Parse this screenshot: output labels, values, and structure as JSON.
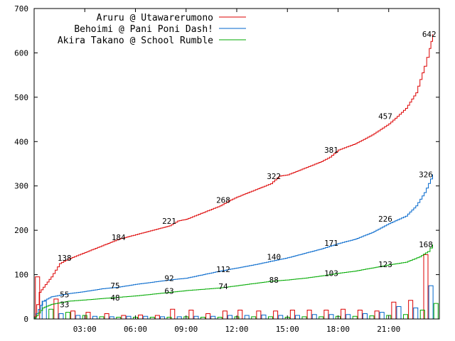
{
  "chart_data": {
    "type": "line",
    "title": "",
    "xlabel": "",
    "ylabel": "",
    "xlim": [
      0,
      24
    ],
    "ylim": [
      0,
      700
    ],
    "y_ticks": [
      0,
      100,
      200,
      300,
      400,
      500,
      600,
      700
    ],
    "x_ticks": [
      {
        "t": 3,
        "label": "03:00"
      },
      {
        "t": 6,
        "label": "06:00"
      },
      {
        "t": 9,
        "label": "09:00"
      },
      {
        "t": 12,
        "label": "12:00"
      },
      {
        "t": 15,
        "label": "15:00"
      },
      {
        "t": 18,
        "label": "18:00"
      },
      {
        "t": 21,
        "label": "21:00"
      }
    ],
    "grid": false,
    "legend_position": "top-right",
    "series": [
      {
        "name": "Aruru @ Utawarerumono",
        "color": "#dd0000",
        "values": [
          [
            0,
            5
          ],
          [
            0.3,
            60
          ],
          [
            1,
            95
          ],
          [
            1.5,
            125
          ],
          [
            2,
            135
          ],
          [
            3,
            150
          ],
          [
            4,
            165
          ],
          [
            5,
            180
          ],
          [
            6,
            190
          ],
          [
            7,
            200
          ],
          [
            8,
            210
          ],
          [
            8.5,
            221
          ],
          [
            9,
            225
          ],
          [
            10,
            240
          ],
          [
            11,
            255
          ],
          [
            11.5,
            266
          ],
          [
            12,
            275
          ],
          [
            13,
            290
          ],
          [
            14,
            305
          ],
          [
            14.5,
            322
          ],
          [
            15,
            325
          ],
          [
            16,
            340
          ],
          [
            17,
            355
          ],
          [
            17.5,
            365
          ],
          [
            18,
            381
          ],
          [
            19,
            395
          ],
          [
            20,
            415
          ],
          [
            21,
            440
          ],
          [
            21.5,
            457
          ],
          [
            22,
            475
          ],
          [
            22.6,
            510
          ],
          [
            23.1,
            570
          ],
          [
            23.4,
            610
          ],
          [
            23.6,
            642
          ]
        ],
        "annotations": [
          {
            "t": 1.8,
            "v": 138,
            "label": "138"
          },
          {
            "t": 5,
            "v": 184,
            "label": "184"
          },
          {
            "t": 8,
            "v": 221,
            "label": "221"
          },
          {
            "t": 11.2,
            "v": 268,
            "label": "268"
          },
          {
            "t": 14.2,
            "v": 322,
            "label": "322"
          },
          {
            "t": 17.6,
            "v": 381,
            "label": "381"
          },
          {
            "t": 20.8,
            "v": 457,
            "label": "457"
          },
          {
            "t": 23.4,
            "v": 642,
            "label": "642"
          }
        ],
        "bars": [
          [
            0.2,
            95
          ],
          [
            1.3,
            45
          ],
          [
            2.3,
            18
          ],
          [
            3.2,
            15
          ],
          [
            4.3,
            12
          ],
          [
            5.3,
            8
          ],
          [
            6.3,
            9
          ],
          [
            7.3,
            8
          ],
          [
            8.2,
            22
          ],
          [
            9.3,
            20
          ],
          [
            10.3,
            12
          ],
          [
            11.3,
            18
          ],
          [
            12.2,
            20
          ],
          [
            13.3,
            18
          ],
          [
            14.3,
            18
          ],
          [
            15.3,
            20
          ],
          [
            16.3,
            20
          ],
          [
            17.3,
            20
          ],
          [
            18.3,
            22
          ],
          [
            19.3,
            20
          ],
          [
            20.3,
            18
          ],
          [
            21.3,
            38
          ],
          [
            22.3,
            42
          ],
          [
            23.2,
            145
          ]
        ]
      },
      {
        "name": "Behoimi @ Pani Poni Dash!",
        "color": "#0066cc",
        "values": [
          [
            0,
            3
          ],
          [
            0.5,
            40
          ],
          [
            1,
            50
          ],
          [
            2,
            57
          ],
          [
            3,
            62
          ],
          [
            4,
            68
          ],
          [
            5,
            72
          ],
          [
            6,
            78
          ],
          [
            7,
            83
          ],
          [
            8,
            88
          ],
          [
            9,
            92
          ],
          [
            10,
            100
          ],
          [
            11,
            108
          ],
          [
            12,
            115
          ],
          [
            13,
            122
          ],
          [
            14,
            130
          ],
          [
            15,
            138
          ],
          [
            16,
            148
          ],
          [
            17,
            158
          ],
          [
            18,
            170
          ],
          [
            19,
            180
          ],
          [
            20,
            195
          ],
          [
            21,
            215
          ],
          [
            22,
            232
          ],
          [
            22.6,
            255
          ],
          [
            23.1,
            285
          ],
          [
            23.6,
            326
          ]
        ],
        "annotations": [
          {
            "t": 1.8,
            "v": 55,
            "label": "55"
          },
          {
            "t": 4.8,
            "v": 75,
            "label": "75"
          },
          {
            "t": 8,
            "v": 92,
            "label": "92"
          },
          {
            "t": 11.2,
            "v": 112,
            "label": "112"
          },
          {
            "t": 14.2,
            "v": 140,
            "label": "140"
          },
          {
            "t": 17.6,
            "v": 171,
            "label": "171"
          },
          {
            "t": 20.8,
            "v": 226,
            "label": "226"
          },
          {
            "t": 23.2,
            "v": 326,
            "label": "326"
          }
        ],
        "bars": [
          [
            0.6,
            40
          ],
          [
            1.6,
            12
          ],
          [
            2.6,
            8
          ],
          [
            3.6,
            6
          ],
          [
            4.6,
            5
          ],
          [
            5.6,
            6
          ],
          [
            6.6,
            6
          ],
          [
            7.6,
            5
          ],
          [
            8.6,
            5
          ],
          [
            9.6,
            6
          ],
          [
            10.6,
            6
          ],
          [
            11.6,
            8
          ],
          [
            12.6,
            8
          ],
          [
            13.6,
            9
          ],
          [
            14.6,
            8
          ],
          [
            15.6,
            8
          ],
          [
            16.6,
            10
          ],
          [
            17.6,
            10
          ],
          [
            18.6,
            10
          ],
          [
            19.6,
            12
          ],
          [
            20.6,
            15
          ],
          [
            21.6,
            28
          ],
          [
            22.6,
            25
          ],
          [
            23.5,
            75
          ]
        ]
      },
      {
        "name": "Akira Takano @ School Rumble",
        "color": "#00aa00",
        "values": [
          [
            0,
            2
          ],
          [
            0.5,
            25
          ],
          [
            1,
            33
          ],
          [
            2,
            40
          ],
          [
            3,
            43
          ],
          [
            4,
            46
          ],
          [
            5,
            49
          ],
          [
            6,
            52
          ],
          [
            7,
            56
          ],
          [
            8,
            60
          ],
          [
            9,
            64
          ],
          [
            10,
            67
          ],
          [
            11,
            70
          ],
          [
            12,
            75
          ],
          [
            13,
            80
          ],
          [
            14,
            85
          ],
          [
            15,
            88
          ],
          [
            16,
            92
          ],
          [
            17,
            97
          ],
          [
            18,
            103
          ],
          [
            19,
            108
          ],
          [
            20,
            115
          ],
          [
            21,
            122
          ],
          [
            22,
            128
          ],
          [
            22.8,
            140
          ],
          [
            23.3,
            152
          ],
          [
            23.6,
            168
          ]
        ],
        "annotations": [
          {
            "t": 1.8,
            "v": 33,
            "label": "33"
          },
          {
            "t": 4.8,
            "v": 48,
            "label": "48"
          },
          {
            "t": 8,
            "v": 63,
            "label": "63"
          },
          {
            "t": 11.2,
            "v": 74,
            "label": "74"
          },
          {
            "t": 14.2,
            "v": 88,
            "label": "88"
          },
          {
            "t": 17.6,
            "v": 103,
            "label": "103"
          },
          {
            "t": 20.8,
            "v": 123,
            "label": "123"
          },
          {
            "t": 23.2,
            "v": 168,
            "label": "168"
          }
        ],
        "bars": [
          [
            1,
            22
          ],
          [
            2,
            15
          ],
          [
            3,
            8
          ],
          [
            4,
            5
          ],
          [
            5,
            4
          ],
          [
            6,
            4
          ],
          [
            7,
            4
          ],
          [
            8,
            4
          ],
          [
            9,
            5
          ],
          [
            10,
            4
          ],
          [
            11,
            4
          ],
          [
            12,
            5
          ],
          [
            13,
            5
          ],
          [
            14,
            5
          ],
          [
            15,
            4
          ],
          [
            16,
            5
          ],
          [
            17,
            5
          ],
          [
            18,
            6
          ],
          [
            19,
            6
          ],
          [
            20,
            7
          ],
          [
            21,
            8
          ],
          [
            22,
            10
          ],
          [
            23,
            20
          ],
          [
            23.8,
            35
          ]
        ]
      }
    ]
  }
}
